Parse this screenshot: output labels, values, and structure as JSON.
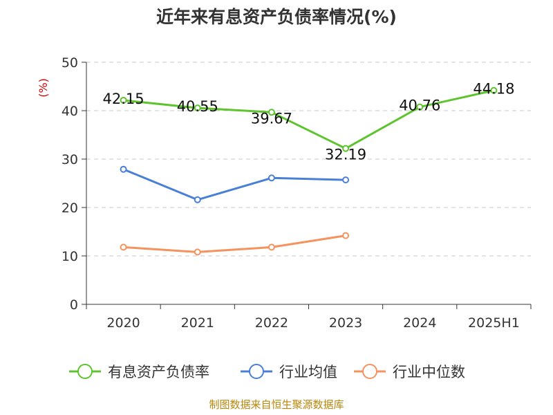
{
  "chart_data": {
    "type": "line",
    "title": "近年来有息资产负债率情况(%)",
    "ylabel": "(%)",
    "categories": [
      "2020",
      "2021",
      "2022",
      "2023",
      "2024",
      "2025H1"
    ],
    "ylim": [
      0,
      50
    ],
    "yticks": [
      0,
      10,
      20,
      30,
      40,
      50
    ],
    "grid": true,
    "legend_position": "bottom",
    "series": [
      {
        "name": "有息资产负债率",
        "color": "#5ec42e",
        "values": [
          42.15,
          40.55,
          39.67,
          32.19,
          40.76,
          44.18
        ],
        "labels": [
          "42.15",
          "40.55",
          "39.67",
          "32.19",
          "40.76",
          "44.18"
        ]
      },
      {
        "name": "行业均值",
        "color": "#4a7fd6",
        "values": [
          27.9,
          21.6,
          26.1,
          25.7,
          null,
          null
        ]
      },
      {
        "name": "行业中位数",
        "color": "#f5925e",
        "values": [
          11.8,
          10.8,
          11.8,
          14.2,
          null,
          null
        ]
      }
    ]
  },
  "footer": {
    "source": "制图数据来自恒生聚源数据库"
  }
}
